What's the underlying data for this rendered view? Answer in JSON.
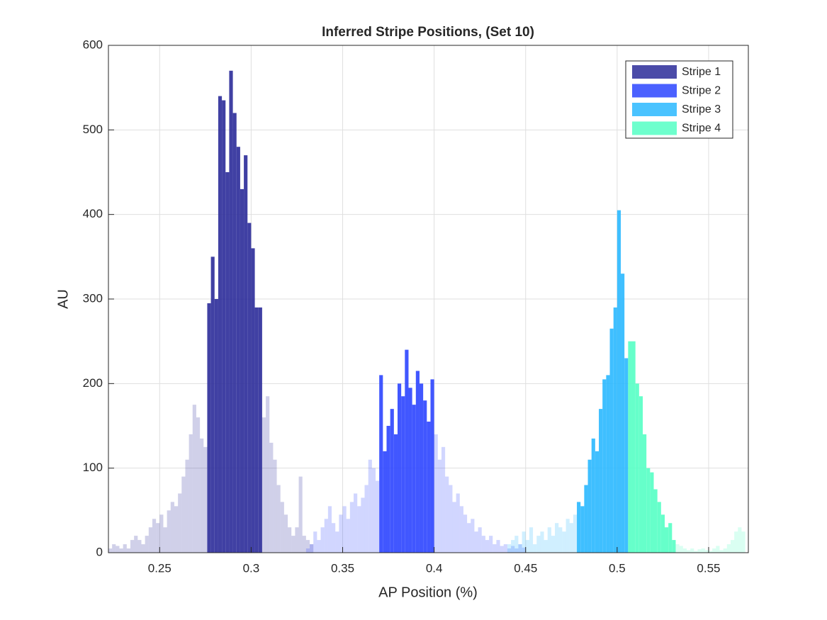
{
  "chart_data": {
    "type": "histogram",
    "title": "Inferred Stripe Positions,  (Set 10)",
    "xlabel": "AP Position (%)",
    "ylabel": "AU",
    "xlim": [
      0.222,
      0.5717
    ],
    "ylim": [
      0,
      600
    ],
    "xticks": [
      0.25,
      0.3,
      0.35,
      0.4,
      0.45,
      0.5,
      0.55
    ],
    "yticks": [
      0,
      100,
      200,
      300,
      400,
      500,
      600
    ],
    "grid": true,
    "legend": "northeast",
    "series": [
      {
        "name": "Stripe 1",
        "color": "#2b2b99",
        "highlight": [
          0.276,
          0.306
        ],
        "bins": [
          0.222,
          0.224,
          0.226,
          0.228,
          0.23,
          0.232,
          0.234,
          0.236,
          0.238,
          0.24,
          0.242,
          0.244,
          0.246,
          0.248,
          0.25,
          0.252,
          0.254,
          0.256,
          0.258,
          0.26,
          0.262,
          0.264,
          0.266,
          0.268,
          0.27,
          0.272,
          0.274,
          0.276,
          0.278,
          0.28,
          0.282,
          0.284,
          0.286,
          0.288,
          0.29,
          0.292,
          0.294,
          0.296,
          0.298,
          0.3,
          0.302,
          0.304,
          0.306,
          0.308,
          0.31,
          0.312,
          0.314,
          0.316,
          0.318,
          0.32,
          0.322,
          0.324,
          0.326,
          0.328,
          0.33,
          0.332,
          0.334
        ],
        "values": [
          5,
          10,
          8,
          5,
          10,
          5,
          15,
          20,
          15,
          10,
          20,
          30,
          40,
          35,
          45,
          30,
          50,
          60,
          55,
          70,
          90,
          110,
          140,
          175,
          160,
          135,
          125,
          295,
          350,
          300,
          540,
          535,
          450,
          570,
          520,
          480,
          430,
          470,
          390,
          360,
          290,
          290,
          160,
          185,
          130,
          110,
          80,
          60,
          45,
          30,
          20,
          30,
          90,
          20,
          15,
          10
        ]
      },
      {
        "name": "Stripe 2",
        "color": "#2c45ff",
        "highlight": [
          0.37,
          0.4
        ],
        "bins": [
          0.33,
          0.332,
          0.334,
          0.336,
          0.338,
          0.34,
          0.342,
          0.344,
          0.346,
          0.348,
          0.35,
          0.352,
          0.354,
          0.356,
          0.358,
          0.36,
          0.362,
          0.364,
          0.366,
          0.368,
          0.37,
          0.372,
          0.374,
          0.376,
          0.378,
          0.38,
          0.382,
          0.384,
          0.386,
          0.388,
          0.39,
          0.392,
          0.394,
          0.396,
          0.398,
          0.4,
          0.402,
          0.404,
          0.406,
          0.408,
          0.41,
          0.412,
          0.414,
          0.416,
          0.418,
          0.42,
          0.422,
          0.424,
          0.426,
          0.428,
          0.43,
          0.432,
          0.434,
          0.436,
          0.438,
          0.44,
          0.442,
          0.444,
          0.446,
          0.448,
          0.45
        ],
        "values": [
          5,
          10,
          25,
          15,
          30,
          40,
          55,
          35,
          25,
          45,
          55,
          40,
          60,
          70,
          55,
          65,
          80,
          110,
          100,
          85,
          210,
          120,
          150,
          170,
          140,
          200,
          185,
          240,
          195,
          175,
          215,
          200,
          180,
          155,
          205,
          140,
          110,
          125,
          90,
          80,
          60,
          70,
          55,
          45,
          35,
          40,
          25,
          30,
          20,
          15,
          20,
          10,
          15,
          8,
          10,
          5,
          8,
          5,
          10,
          6
        ]
      },
      {
        "name": "Stripe 3",
        "color": "#2ab8ff",
        "highlight": [
          0.478,
          0.506
        ],
        "bins": [
          0.44,
          0.442,
          0.444,
          0.446,
          0.448,
          0.45,
          0.452,
          0.454,
          0.456,
          0.458,
          0.46,
          0.462,
          0.464,
          0.466,
          0.468,
          0.47,
          0.472,
          0.474,
          0.476,
          0.478,
          0.48,
          0.482,
          0.484,
          0.486,
          0.488,
          0.49,
          0.492,
          0.494,
          0.496,
          0.498,
          0.5,
          0.502,
          0.504,
          0.506
        ],
        "values": [
          10,
          15,
          20,
          10,
          25,
          15,
          30,
          10,
          20,
          25,
          15,
          30,
          20,
          35,
          30,
          25,
          40,
          35,
          45,
          60,
          55,
          80,
          110,
          135,
          120,
          170,
          205,
          210,
          265,
          290,
          405,
          330,
          230
        ]
      },
      {
        "name": "Stripe 4",
        "color": "#55ffc4",
        "highlight": [
          0.506,
          0.532
        ],
        "bins": [
          0.506,
          0.508,
          0.51,
          0.512,
          0.514,
          0.516,
          0.518,
          0.52,
          0.522,
          0.524,
          0.526,
          0.528,
          0.53,
          0.532,
          0.534,
          0.536,
          0.538,
          0.54,
          0.542,
          0.544,
          0.546,
          0.548,
          0.55,
          0.552,
          0.554,
          0.556,
          0.558,
          0.56,
          0.562,
          0.564,
          0.566,
          0.568,
          0.57
        ],
        "values": [
          250,
          250,
          200,
          185,
          140,
          100,
          95,
          75,
          60,
          45,
          30,
          35,
          15,
          10,
          8,
          5,
          3,
          5,
          2,
          4,
          5,
          3,
          2,
          5,
          8,
          3,
          5,
          10,
          15,
          25,
          30,
          25
        ]
      }
    ]
  }
}
